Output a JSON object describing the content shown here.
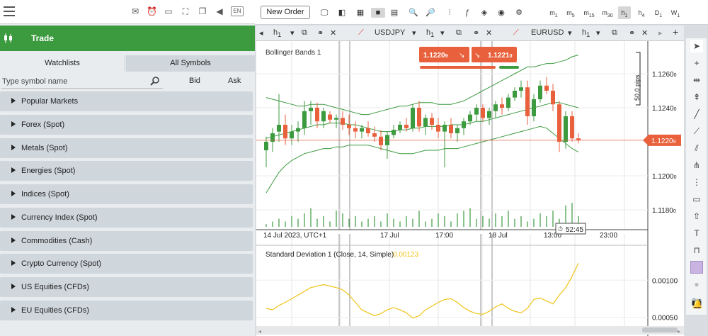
{
  "top_icons": {
    "lang": "EN"
  },
  "trade": {
    "title": "Trade"
  },
  "watchlist_tabs": [
    "Watchlists",
    "All Symbols"
  ],
  "search": {
    "placeholder": "Type symbol name",
    "bid": "Bid",
    "ask": "Ask"
  },
  "categories": [
    "Popular Markets",
    "Forex (Spot)",
    "Metals (Spot)",
    "Energies (Spot)",
    "Indices (Spot)",
    "Currency Index (Spot)",
    "Commodities (Cash)",
    "Crypto Currency (Spot)",
    "US Equities (CFDs)",
    "EU Equities (CFDs)"
  ],
  "toolbar": {
    "new_order": "New Order",
    "timeframes": [
      {
        "n": "m",
        "s": "1"
      },
      {
        "n": "m",
        "s": "5"
      },
      {
        "n": "m",
        "s": "15"
      },
      {
        "n": "m",
        "s": "30"
      },
      {
        "n": "h",
        "s": "1",
        "active": true
      },
      {
        "n": "h",
        "s": "4"
      },
      {
        "n": "D",
        "s": "1"
      },
      {
        "n": "W",
        "s": "1"
      }
    ]
  },
  "chart_tabs": [
    {
      "tf": "h",
      "tfs": "1"
    },
    {
      "symbol": "USDJPY",
      "tf": "h",
      "tfs": "1"
    },
    {
      "symbol": "EURUSD",
      "tf": "h",
      "tfs": "1"
    }
  ],
  "chart": {
    "indicator": "Bollinger Bands 1",
    "sell_price_main": "1.1220",
    "sell_price_sup": "9",
    "buy_price_main": "1.1221",
    "buy_price_sup": "0",
    "pips": "50.0 pips",
    "current_price_main": "1.1220",
    "current_price_sup": "9",
    "countdown": "52:45",
    "price_axis": [
      {
        "main": "1.1260",
        "sup": "0"
      },
      {
        "main": "1.1240",
        "sup": "0"
      },
      {
        "main": "1.1200",
        "sup": "0"
      },
      {
        "main": "1.1180",
        "sup": "0"
      }
    ],
    "time_axis": [
      "14 Jul 2023, UTC+1",
      "17 Jul",
      "17:00",
      "18 Jul",
      "13:00",
      "23:00"
    ]
  },
  "sub_chart": {
    "indicator": "Standard Deviation 1 (Close, 14, Simple)",
    "value": "0.00123",
    "axis": [
      "0.00100",
      "0.00050"
    ]
  },
  "colors": {
    "green": "#3c9a3f",
    "red": "#e8613c",
    "yellow": "#f0c419"
  },
  "chart_data": {
    "type": "candlestick",
    "symbol": "EURUSD",
    "timeframe": "h1",
    "ylim": [
      1.117,
      1.1275
    ],
    "candles": [
      {
        "o": 1.1215,
        "h": 1.1223,
        "l": 1.1205,
        "c": 1.122
      },
      {
        "o": 1.122,
        "h": 1.1228,
        "l": 1.1214,
        "c": 1.1225
      },
      {
        "o": 1.1226,
        "h": 1.1248,
        "l": 1.122,
        "c": 1.123
      },
      {
        "o": 1.123,
        "h": 1.1236,
        "l": 1.1218,
        "c": 1.1222
      },
      {
        "o": 1.1222,
        "h": 1.123,
        "l": 1.1218,
        "c": 1.1226
      },
      {
        "o": 1.1226,
        "h": 1.1232,
        "l": 1.122,
        "c": 1.1228
      },
      {
        "o": 1.1228,
        "h": 1.1244,
        "l": 1.1224,
        "c": 1.1238
      },
      {
        "o": 1.1238,
        "h": 1.1244,
        "l": 1.123,
        "c": 1.124
      },
      {
        "o": 1.124,
        "h": 1.1243,
        "l": 1.1228,
        "c": 1.1232
      },
      {
        "o": 1.1232,
        "h": 1.124,
        "l": 1.1228,
        "c": 1.1238
      },
      {
        "o": 1.1236,
        "h": 1.1238,
        "l": 1.1231,
        "c": 1.1233
      },
      {
        "o": 1.1233,
        "h": 1.1236,
        "l": 1.1228,
        "c": 1.1234
      },
      {
        "o": 1.1234,
        "h": 1.1238,
        "l": 1.1227,
        "c": 1.123
      },
      {
        "o": 1.123,
        "h": 1.1236,
        "l": 1.1224,
        "c": 1.1228
      },
      {
        "o": 1.1228,
        "h": 1.1232,
        "l": 1.1222,
        "c": 1.1226
      },
      {
        "o": 1.1226,
        "h": 1.123,
        "l": 1.1222,
        "c": 1.1228
      },
      {
        "o": 1.1228,
        "h": 1.1232,
        "l": 1.1223,
        "c": 1.1225
      },
      {
        "o": 1.1225,
        "h": 1.1229,
        "l": 1.122,
        "c": 1.1223
      },
      {
        "o": 1.1223,
        "h": 1.1227,
        "l": 1.1215,
        "c": 1.1218
      },
      {
        "o": 1.1218,
        "h": 1.1226,
        "l": 1.121,
        "c": 1.1224
      },
      {
        "o": 1.1224,
        "h": 1.123,
        "l": 1.1222,
        "c": 1.1227
      },
      {
        "o": 1.1227,
        "h": 1.1232,
        "l": 1.1225,
        "c": 1.123
      },
      {
        "o": 1.123,
        "h": 1.1234,
        "l": 1.1226,
        "c": 1.1228
      },
      {
        "o": 1.1228,
        "h": 1.1242,
        "l": 1.1226,
        "c": 1.124
      },
      {
        "o": 1.124,
        "h": 1.1244,
        "l": 1.1226,
        "c": 1.1229
      },
      {
        "o": 1.1229,
        "h": 1.1236,
        "l": 1.1224,
        "c": 1.1234
      },
      {
        "o": 1.1234,
        "h": 1.1237,
        "l": 1.1227,
        "c": 1.123
      },
      {
        "o": 1.123,
        "h": 1.1234,
        "l": 1.1222,
        "c": 1.1226
      },
      {
        "o": 1.1226,
        "h": 1.1232,
        "l": 1.1205,
        "c": 1.123
      },
      {
        "o": 1.123,
        "h": 1.1234,
        "l": 1.1222,
        "c": 1.1225
      },
      {
        "o": 1.1225,
        "h": 1.123,
        "l": 1.122,
        "c": 1.1228
      },
      {
        "o": 1.1228,
        "h": 1.1234,
        "l": 1.1224,
        "c": 1.1232
      },
      {
        "o": 1.1232,
        "h": 1.1238,
        "l": 1.123,
        "c": 1.1236
      },
      {
        "o": 1.1236,
        "h": 1.1242,
        "l": 1.1232,
        "c": 1.124
      },
      {
        "o": 1.124,
        "h": 1.1242,
        "l": 1.1232,
        "c": 1.1234
      },
      {
        "o": 1.1234,
        "h": 1.124,
        "l": 1.123,
        "c": 1.1238
      },
      {
        "o": 1.1238,
        "h": 1.1244,
        "l": 1.1234,
        "c": 1.1242
      },
      {
        "o": 1.1242,
        "h": 1.1246,
        "l": 1.1236,
        "c": 1.124
      },
      {
        "o": 1.124,
        "h": 1.1248,
        "l": 1.1238,
        "c": 1.1246
      },
      {
        "o": 1.1246,
        "h": 1.1252,
        "l": 1.1244,
        "c": 1.125
      },
      {
        "o": 1.125,
        "h": 1.1256,
        "l": 1.1246,
        "c": 1.1252
      },
      {
        "o": 1.1252,
        "h": 1.1256,
        "l": 1.123,
        "c": 1.1235
      },
      {
        "o": 1.1235,
        "h": 1.1248,
        "l": 1.1232,
        "c": 1.1245
      },
      {
        "o": 1.1245,
        "h": 1.1256,
        "l": 1.1243,
        "c": 1.1253
      },
      {
        "o": 1.1253,
        "h": 1.1258,
        "l": 1.1248,
        "c": 1.125
      },
      {
        "o": 1.125,
        "h": 1.1254,
        "l": 1.1238,
        "c": 1.1242
      },
      {
        "o": 1.1242,
        "h": 1.1244,
        "l": 1.1214,
        "c": 1.122
      },
      {
        "o": 1.122,
        "h": 1.1238,
        "l": 1.1216,
        "c": 1.1235
      },
      {
        "o": 1.1235,
        "h": 1.1238,
        "l": 1.122,
        "c": 1.1222
      },
      {
        "o": 1.1222,
        "h": 1.1225,
        "l": 1.1219,
        "c": 1.1221
      }
    ],
    "bollinger_upper": [
      1.1246,
      1.1245,
      1.1244,
      1.1243,
      1.1242,
      1.1241,
      1.1241,
      1.1242,
      1.1242,
      1.1242,
      1.1241,
      1.124,
      1.1239,
      1.1238,
      1.1237,
      1.1236,
      1.1236,
      1.1237,
      1.1238,
      1.1239,
      1.124,
      1.1241,
      1.1241,
      1.1242,
      1.1243,
      1.1243,
      1.1243,
      1.1242,
      1.1242,
      1.1242,
      1.1243,
      1.1244,
      1.1246,
      1.1248,
      1.125,
      1.1252,
      1.1254,
      1.1256,
      1.1258,
      1.126,
      1.1262,
      1.1264,
      1.1264,
      1.1265,
      1.1266,
      1.1266,
      1.1267,
      1.1268,
      1.127,
      1.1271
    ],
    "bollinger_mid": [
      1.1222,
      1.1223,
      1.1224,
      1.1225,
      1.1226,
      1.1227,
      1.1228,
      1.1229,
      1.123,
      1.123,
      1.1231,
      1.1231,
      1.1231,
      1.123,
      1.123,
      1.1229,
      1.1228,
      1.1227,
      1.1226,
      1.1226,
      1.1226,
      1.1227,
      1.1227,
      1.1228,
      1.1228,
      1.1229,
      1.1229,
      1.1229,
      1.1229,
      1.123,
      1.123,
      1.123,
      1.1231,
      1.1232,
      1.1232,
      1.1233,
      1.1234,
      1.1235,
      1.1236,
      1.1237,
      1.1238,
      1.1239,
      1.124,
      1.1241,
      1.1242,
      1.1243,
      1.1243,
      1.1242,
      1.1241,
      1.124
    ],
    "bollinger_lower": [
      1.119,
      1.1196,
      1.1202,
      1.1206,
      1.1209,
      1.1211,
      1.1213,
      1.1214,
      1.1215,
      1.1216,
      1.1216,
      1.1217,
      1.1217,
      1.1218,
      1.1218,
      1.1218,
      1.1218,
      1.1217,
      1.1216,
      1.1215,
      1.1214,
      1.1213,
      1.1213,
      1.1213,
      1.1214,
      1.1215,
      1.1215,
      1.1215,
      1.1216,
      1.1216,
      1.1216,
      1.1217,
      1.1218,
      1.1219,
      1.122,
      1.1221,
      1.1222,
      1.1223,
      1.1224,
      1.1225,
      1.1226,
      1.1227,
      1.1228,
      1.1229,
      1.1228,
      1.1225,
      1.1222,
      1.1219,
      1.1216,
      1.1214
    ],
    "volume": [
      1,
      2,
      3,
      2,
      4,
      3,
      5,
      7,
      3,
      4,
      2,
      6,
      5,
      3,
      4,
      2,
      3,
      4,
      2,
      5,
      3,
      2,
      4,
      3,
      6,
      2,
      3,
      5,
      4,
      2,
      5,
      6,
      7,
      3,
      4,
      3,
      5,
      4,
      6,
      3,
      4,
      2,
      3,
      5,
      4,
      6,
      3,
      8,
      9,
      4
    ],
    "std_dev": [
      0.00062,
      0.0006,
      0.00066,
      0.0007,
      0.00075,
      0.0008,
      0.00085,
      0.0009,
      0.00092,
      0.00094,
      0.00092,
      0.0009,
      0.00087,
      0.0008,
      0.0007,
      0.0006,
      0.00056,
      0.00052,
      0.00055,
      0.0006,
      0.00063,
      0.0006,
      0.00056,
      0.00049,
      0.00052,
      0.0006,
      0.00065,
      0.0007,
      0.00074,
      0.00075,
      0.0007,
      0.00063,
      0.00058,
      0.00055,
      0.00054,
      0.00058,
      0.00064,
      0.00068,
      0.00062,
      0.00058,
      0.00056,
      0.00062,
      0.00074,
      0.00076,
      0.00072,
      0.00068,
      0.0008,
      0.0009,
      0.00105,
      0.00123
    ]
  }
}
